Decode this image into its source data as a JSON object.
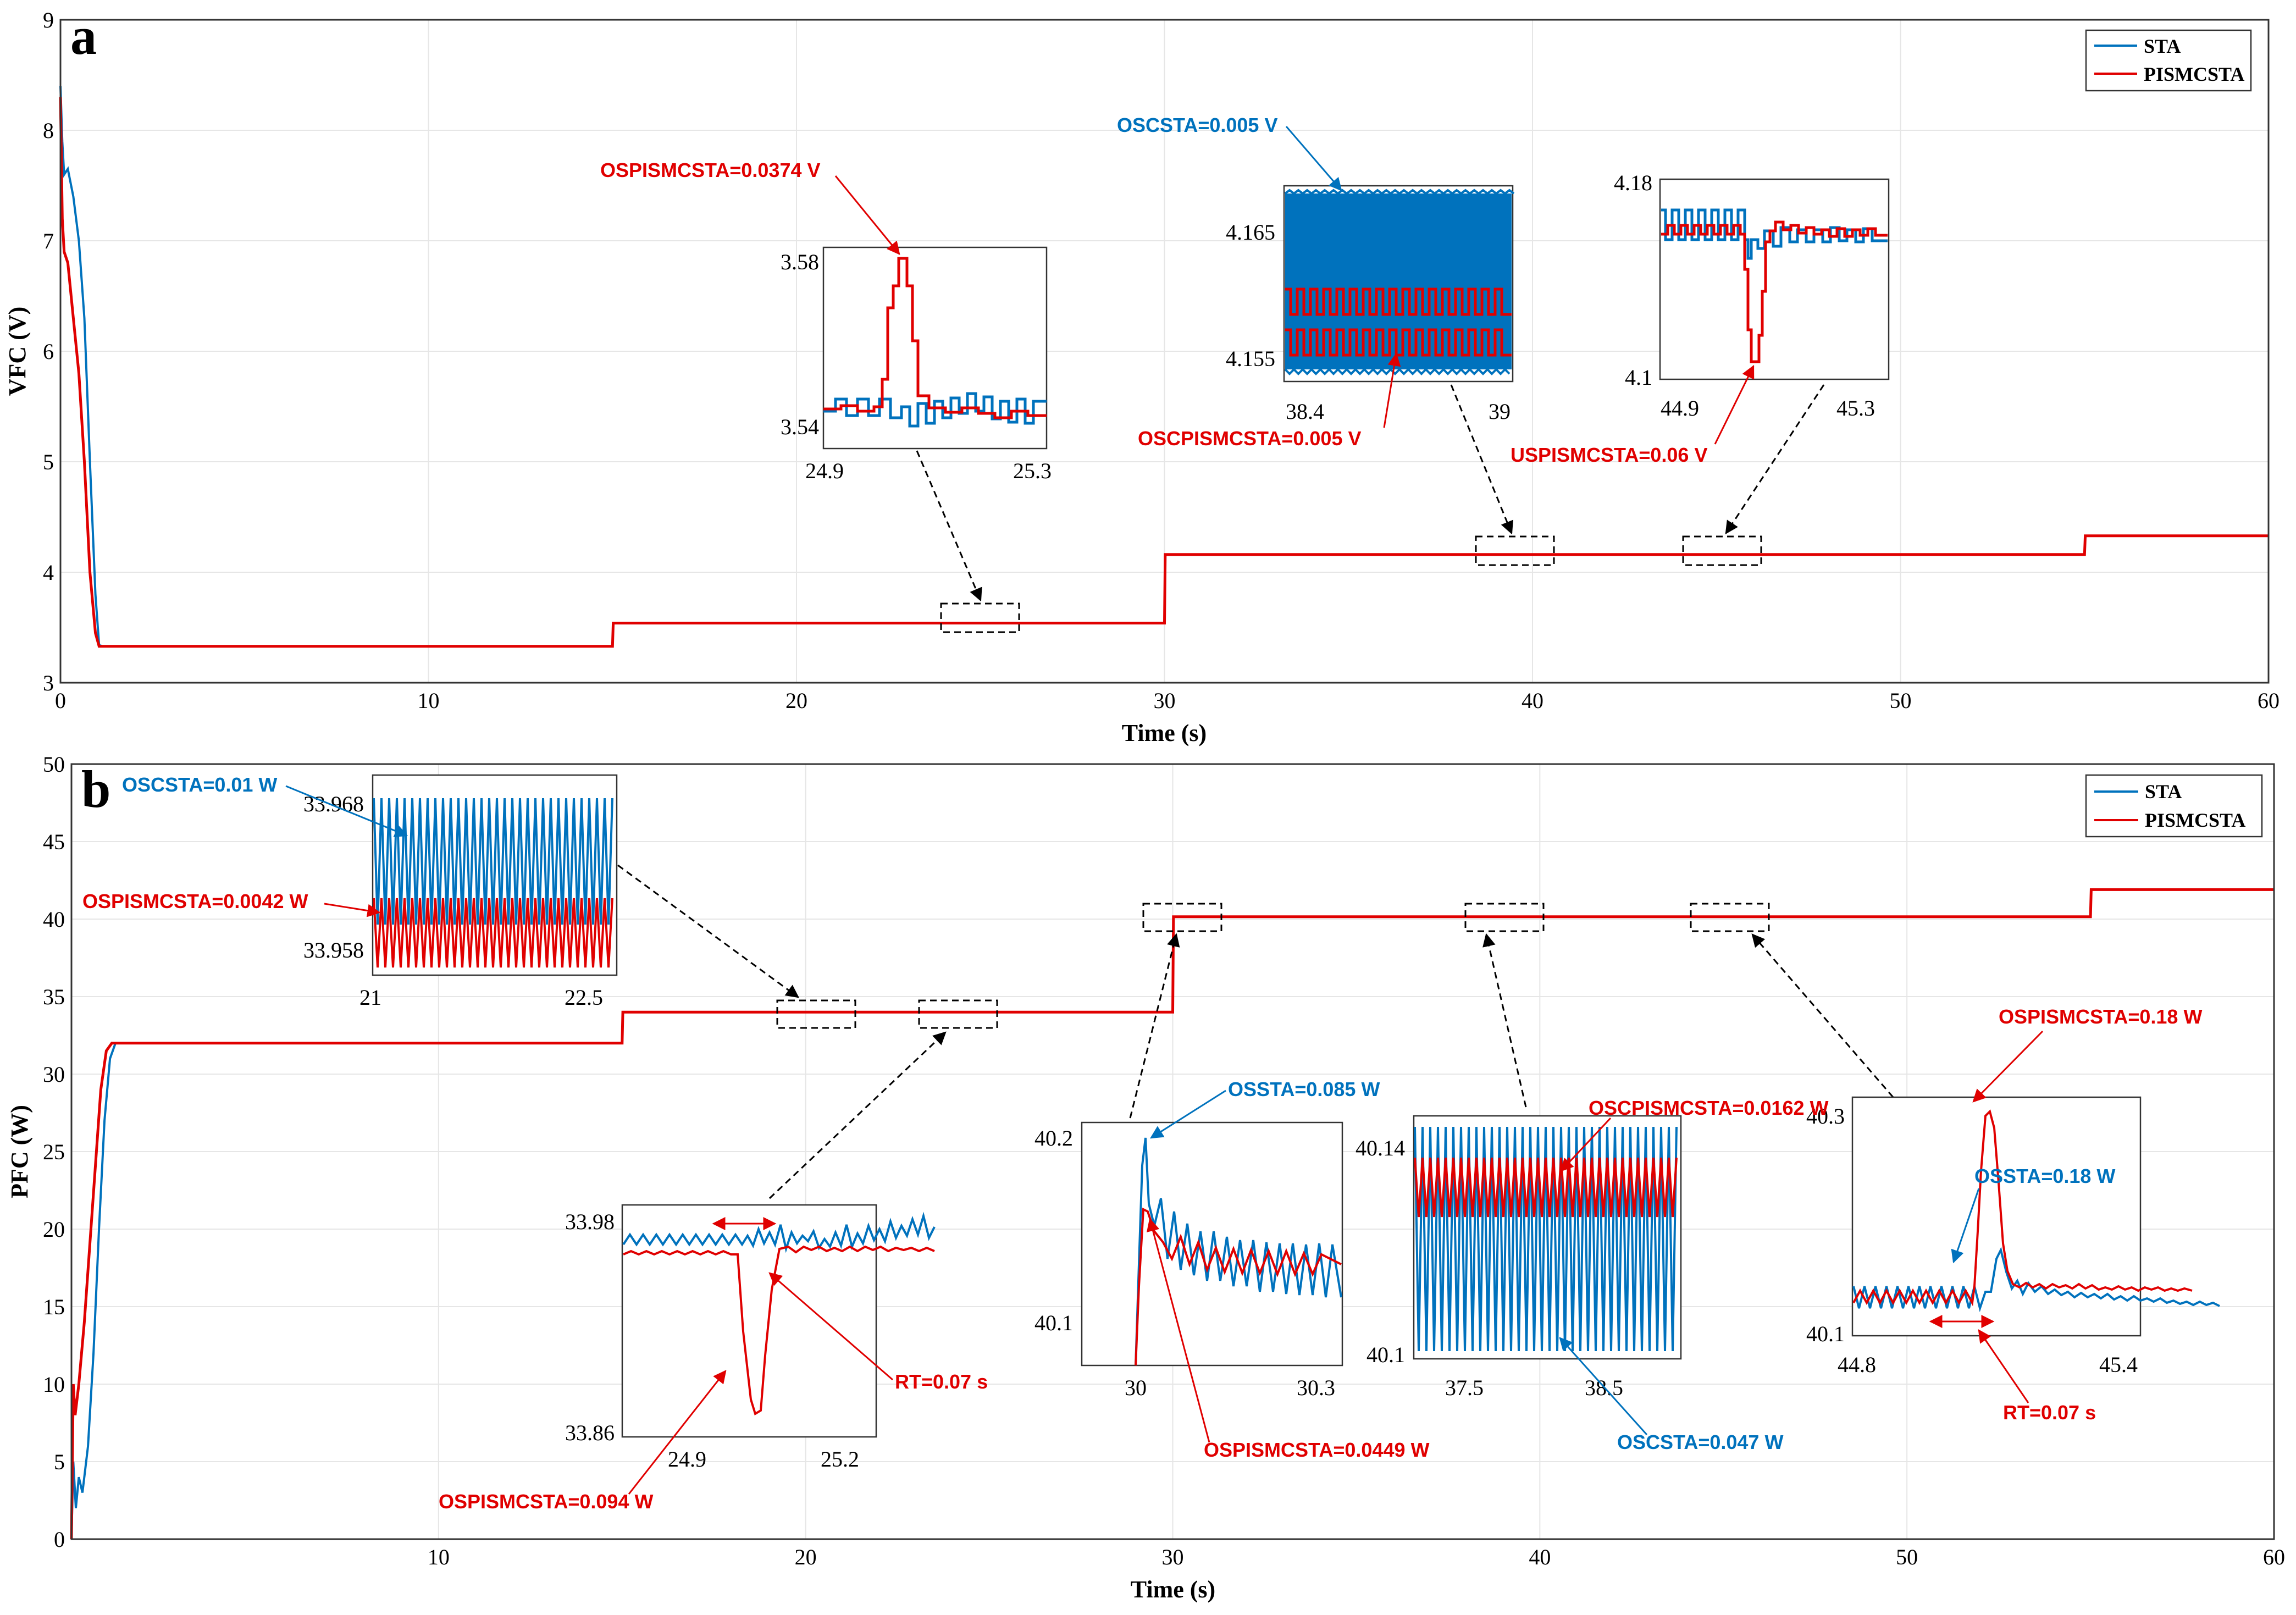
{
  "colors": {
    "sta": "#0072bd",
    "pismcsta": "#e00000"
  },
  "chart_data": [
    {
      "type": "line",
      "panel": "a",
      "xlabel": "Time (s)",
      "ylabel": "VFC (V)",
      "xlim": [
        0,
        60
      ],
      "ylim": [
        3,
        9
      ],
      "xticks": [
        "0",
        "10",
        "20",
        "30",
        "40",
        "50",
        "60"
      ],
      "yticks": [
        "3",
        "4",
        "5",
        "6",
        "7",
        "8",
        "9"
      ],
      "grid": true,
      "legend_position": "top-right",
      "series": [
        {
          "name": "STA",
          "x": [
            0,
            0.05,
            0.1,
            0.2,
            0.35,
            0.5,
            0.65,
            0.8,
            0.95,
            1.05,
            1.15,
            15,
            15.02,
            30,
            30.02,
            55,
            55.02,
            60
          ],
          "y": [
            8.4,
            7.9,
            7.6,
            7.65,
            7.4,
            7.0,
            6.3,
            5.0,
            3.8,
            3.34,
            3.33,
            3.33,
            3.54,
            3.54,
            4.16,
            4.16,
            4.33,
            4.33
          ]
        },
        {
          "name": "PISMCSTA",
          "x": [
            0,
            0.05,
            0.1,
            0.2,
            0.35,
            0.5,
            0.65,
            0.8,
            0.95,
            1.05,
            15,
            15.02,
            30,
            30.02,
            55,
            55.02,
            60
          ],
          "y": [
            8.3,
            7.2,
            6.9,
            6.8,
            6.3,
            5.8,
            5.0,
            4.0,
            3.45,
            3.33,
            3.33,
            3.54,
            3.54,
            4.16,
            4.16,
            4.33,
            4.33
          ]
        }
      ],
      "insets": [
        {
          "id": "a1",
          "xticks": [
            "24.9",
            "25.3"
          ],
          "yticks": [
            "3.58",
            "3.54"
          ],
          "xlim": [
            24.9,
            25.3
          ],
          "ylim": [
            3.535,
            3.585
          ],
          "zoom_region": [
            24.6,
            25.2,
            3.5,
            3.58
          ]
        },
        {
          "id": "a2",
          "xticks": [
            "38.4",
            "39"
          ],
          "yticks": [
            "4.165",
            "4.155"
          ],
          "xlim": [
            38.4,
            39
          ],
          "ylim": [
            4.153,
            4.168
          ],
          "zoom_region": [
            38.7,
            40.7,
            4.1,
            4.22
          ]
        },
        {
          "id": "a3",
          "xticks": [
            "44.9",
            "45.3"
          ],
          "yticks": [
            "4.18",
            "4.1"
          ],
          "xlim": [
            44.9,
            45.3
          ],
          "ylim": [
            4.095,
            4.18
          ],
          "zoom_region": [
            44.2,
            46.3,
            4.1,
            4.22
          ]
        }
      ],
      "annotations": [
        {
          "text": "OSPISMCSTA=0.0374 V",
          "series": "PISMCSTA"
        },
        {
          "text": "OSCSTA=0.005 V",
          "series": "STA"
        },
        {
          "text": "OSCPISMCSTA=0.005 V",
          "series": "PISMCSTA"
        },
        {
          "text": "USPISMCSTA=0.06 V",
          "series": "PISMCSTA"
        }
      ]
    },
    {
      "type": "line",
      "panel": "b",
      "xlabel": "Time (s)",
      "ylabel": "PFC (W)",
      "xlim": [
        0,
        60
      ],
      "ylim": [
        0,
        50
      ],
      "xticks": [
        "10",
        "20",
        "30",
        "40",
        "50",
        "60"
      ],
      "yticks": [
        "0",
        "5",
        "10",
        "15",
        "20",
        "25",
        "30",
        "35",
        "40",
        "45",
        "50"
      ],
      "grid": true,
      "legend_position": "top-right",
      "series": [
        {
          "name": "STA",
          "x": [
            0,
            0.05,
            0.12,
            0.2,
            0.3,
            0.45,
            0.6,
            0.75,
            0.9,
            1.05,
            1.2,
            15,
            15.02,
            30,
            30.02,
            55,
            55.02,
            60
          ],
          "y": [
            0,
            5,
            2,
            4,
            3,
            6,
            12,
            20,
            27,
            31,
            32,
            32,
            34,
            34,
            40.15,
            40.15,
            41.9,
            41.9
          ]
        },
        {
          "name": "PISMCSTA",
          "x": [
            0,
            0.05,
            0.1,
            0.2,
            0.35,
            0.5,
            0.65,
            0.8,
            0.95,
            1.1,
            15,
            15.02,
            30,
            30.02,
            55,
            55.02,
            60
          ],
          "y": [
            0,
            10,
            8,
            10,
            14,
            19,
            24,
            29,
            31.5,
            32,
            32,
            34,
            34,
            40.15,
            40.15,
            41.9,
            41.9
          ]
        }
      ],
      "insets": [
        {
          "id": "b1",
          "xticks": [
            "21",
            "22.5"
          ],
          "yticks": [
            "33.968",
            "33.958"
          ],
          "xlim": [
            21,
            22.8
          ],
          "ylim": [
            33.955,
            33.97
          ]
        },
        {
          "id": "b2",
          "xticks": [
            "24.9",
            "25.2"
          ],
          "yticks": [
            "33.98",
            "33.86"
          ],
          "xlim": [
            24.8,
            25.3
          ],
          "ylim": [
            33.855,
            33.985
          ]
        },
        {
          "id": "b3",
          "xticks": [
            "30",
            "30.3"
          ],
          "yticks": [
            "40.2",
            "40.1"
          ],
          "xlim": [
            29.95,
            30.35
          ],
          "ylim": [
            40.08,
            40.22
          ]
        },
        {
          "id": "b4",
          "xticks": [
            "37.5",
            "38.5"
          ],
          "yticks": [
            "40.14",
            "40.1"
          ],
          "xlim": [
            37.0,
            38.9
          ],
          "ylim": [
            40.095,
            40.145
          ]
        },
        {
          "id": "b5",
          "xticks": [
            "44.8",
            "45.4"
          ],
          "yticks": [
            "40.3",
            "40.1"
          ],
          "xlim": [
            44.8,
            45.4
          ],
          "ylim": [
            40.09,
            40.33
          ]
        }
      ],
      "annotations": [
        {
          "text": "OSCSTA=0.01 W",
          "series": "STA"
        },
        {
          "text": "OSPISMCSTA=0.0042 W",
          "series": "PISMCSTA"
        },
        {
          "text": "RT=0.07 s",
          "series": "PISMCSTA"
        },
        {
          "text": "OSPISMCSTA=0.094 W",
          "series": "PISMCSTA"
        },
        {
          "text": "OSSTA=0.085 W",
          "series": "STA"
        },
        {
          "text": "OSPISMCSTA=0.0449 W",
          "series": "PISMCSTA"
        },
        {
          "text": "OSCPISMCSTA=0.0162 W",
          "series": "PISMCSTA"
        },
        {
          "text": "OSCSTA=0.047 W",
          "series": "STA"
        },
        {
          "text": "OSPISMCSTA=0.18 W",
          "series": "PISMCSTA"
        },
        {
          "text": "OSSTA=0.18 W",
          "series": "STA"
        },
        {
          "text": "RT=0.07 s",
          "series": "PISMCSTA"
        }
      ]
    }
  ]
}
